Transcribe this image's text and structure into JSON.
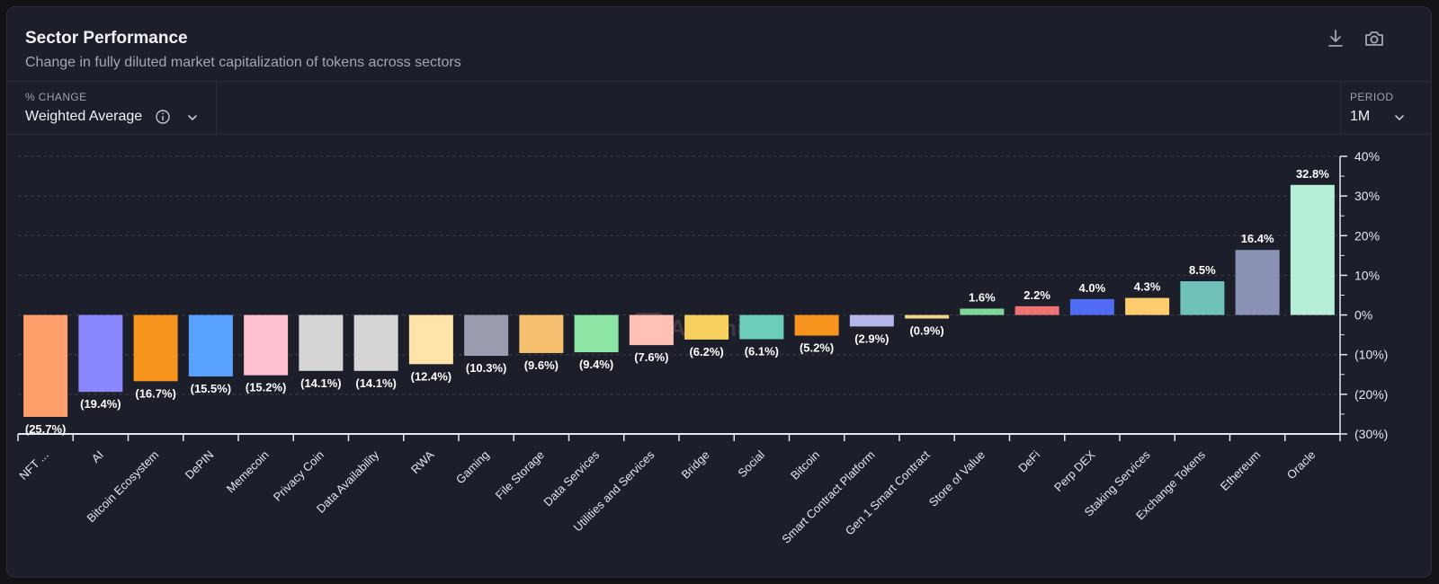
{
  "header": {
    "title": "Sector Performance",
    "subtitle": "Change in fully diluted market capitalization of tokens across sectors"
  },
  "toolbar": {
    "download_icon": "download-icon",
    "screenshot_icon": "camera-icon"
  },
  "controls": {
    "metric": {
      "label": "% CHANGE",
      "value": "Weighted Average",
      "info_icon": "info-icon",
      "chevron_icon": "chevron-down-icon"
    },
    "period": {
      "label": "PERIOD",
      "value": "1M",
      "chevron_icon": "chevron-down-icon"
    }
  },
  "watermark": "Artemis",
  "chart_data": {
    "type": "bar",
    "title": "",
    "xlabel": "",
    "ylabel": "",
    "ylim": [
      -30,
      40
    ],
    "y_ticks": [
      40,
      30,
      20,
      10,
      0,
      -10,
      -20,
      -30
    ],
    "y_tick_labels": [
      "40%",
      "30%",
      "20%",
      "10%",
      "0%",
      "(10%)",
      "(20%)",
      "(30%)"
    ],
    "grid": true,
    "y_axis_position": "right",
    "categories": [
      "NFT ...",
      "AI",
      "Bitcoin Ecosystem",
      "DePIN",
      "Memecoin",
      "Privacy Coin",
      "Data Availability",
      "RWA",
      "Gaming",
      "File Storage",
      "Data Services",
      "Utilities and Services",
      "Bridge",
      "Social",
      "Bitcoin",
      "Smart Contract Platform",
      "Gen 1 Smart Contract",
      "Store of Value",
      "DeFi",
      "Perp DEX",
      "Staking Services",
      "Exchange Tokens",
      "Ethereum",
      "Oracle"
    ],
    "values": [
      -25.7,
      -19.4,
      -16.7,
      -15.5,
      -15.2,
      -14.1,
      -14.1,
      -12.4,
      -10.3,
      -9.6,
      -9.4,
      -7.6,
      -6.2,
      -6.1,
      -5.2,
      -2.9,
      -0.9,
      1.6,
      2.2,
      4.0,
      4.3,
      8.5,
      16.4,
      32.8
    ],
    "data_labels": [
      "(25.7%)",
      "(19.4%)",
      "(16.7%)",
      "(15.5%)",
      "(15.2%)",
      "(14.1%)",
      "(14.1%)",
      "(12.4%)",
      "(10.3%)",
      "(9.6%)",
      "(9.4%)",
      "(7.6%)",
      "(6.2%)",
      "(6.1%)",
      "(5.2%)",
      "(2.9%)",
      "(0.9%)",
      "1.6%",
      "2.2%",
      "4.0%",
      "4.3%",
      "8.5%",
      "16.4%",
      "32.8%"
    ],
    "colors": [
      "#ff9f6b",
      "#8b87ff",
      "#f7941d",
      "#5aa2ff",
      "#ffc0cf",
      "#d6d6d6",
      "#d6d6d6",
      "#ffe3a8",
      "#9c9cb0",
      "#f5c16e",
      "#8ee6a6",
      "#ffc1b5",
      "#f7cf5e",
      "#6ccdb9",
      "#f7941d",
      "#b3b7ea",
      "#f5d58a",
      "#7fd79a",
      "#f07272",
      "#4f6cf2",
      "#ffcc6e",
      "#6fc2ba",
      "#8a93b6",
      "#b6eed8"
    ]
  }
}
